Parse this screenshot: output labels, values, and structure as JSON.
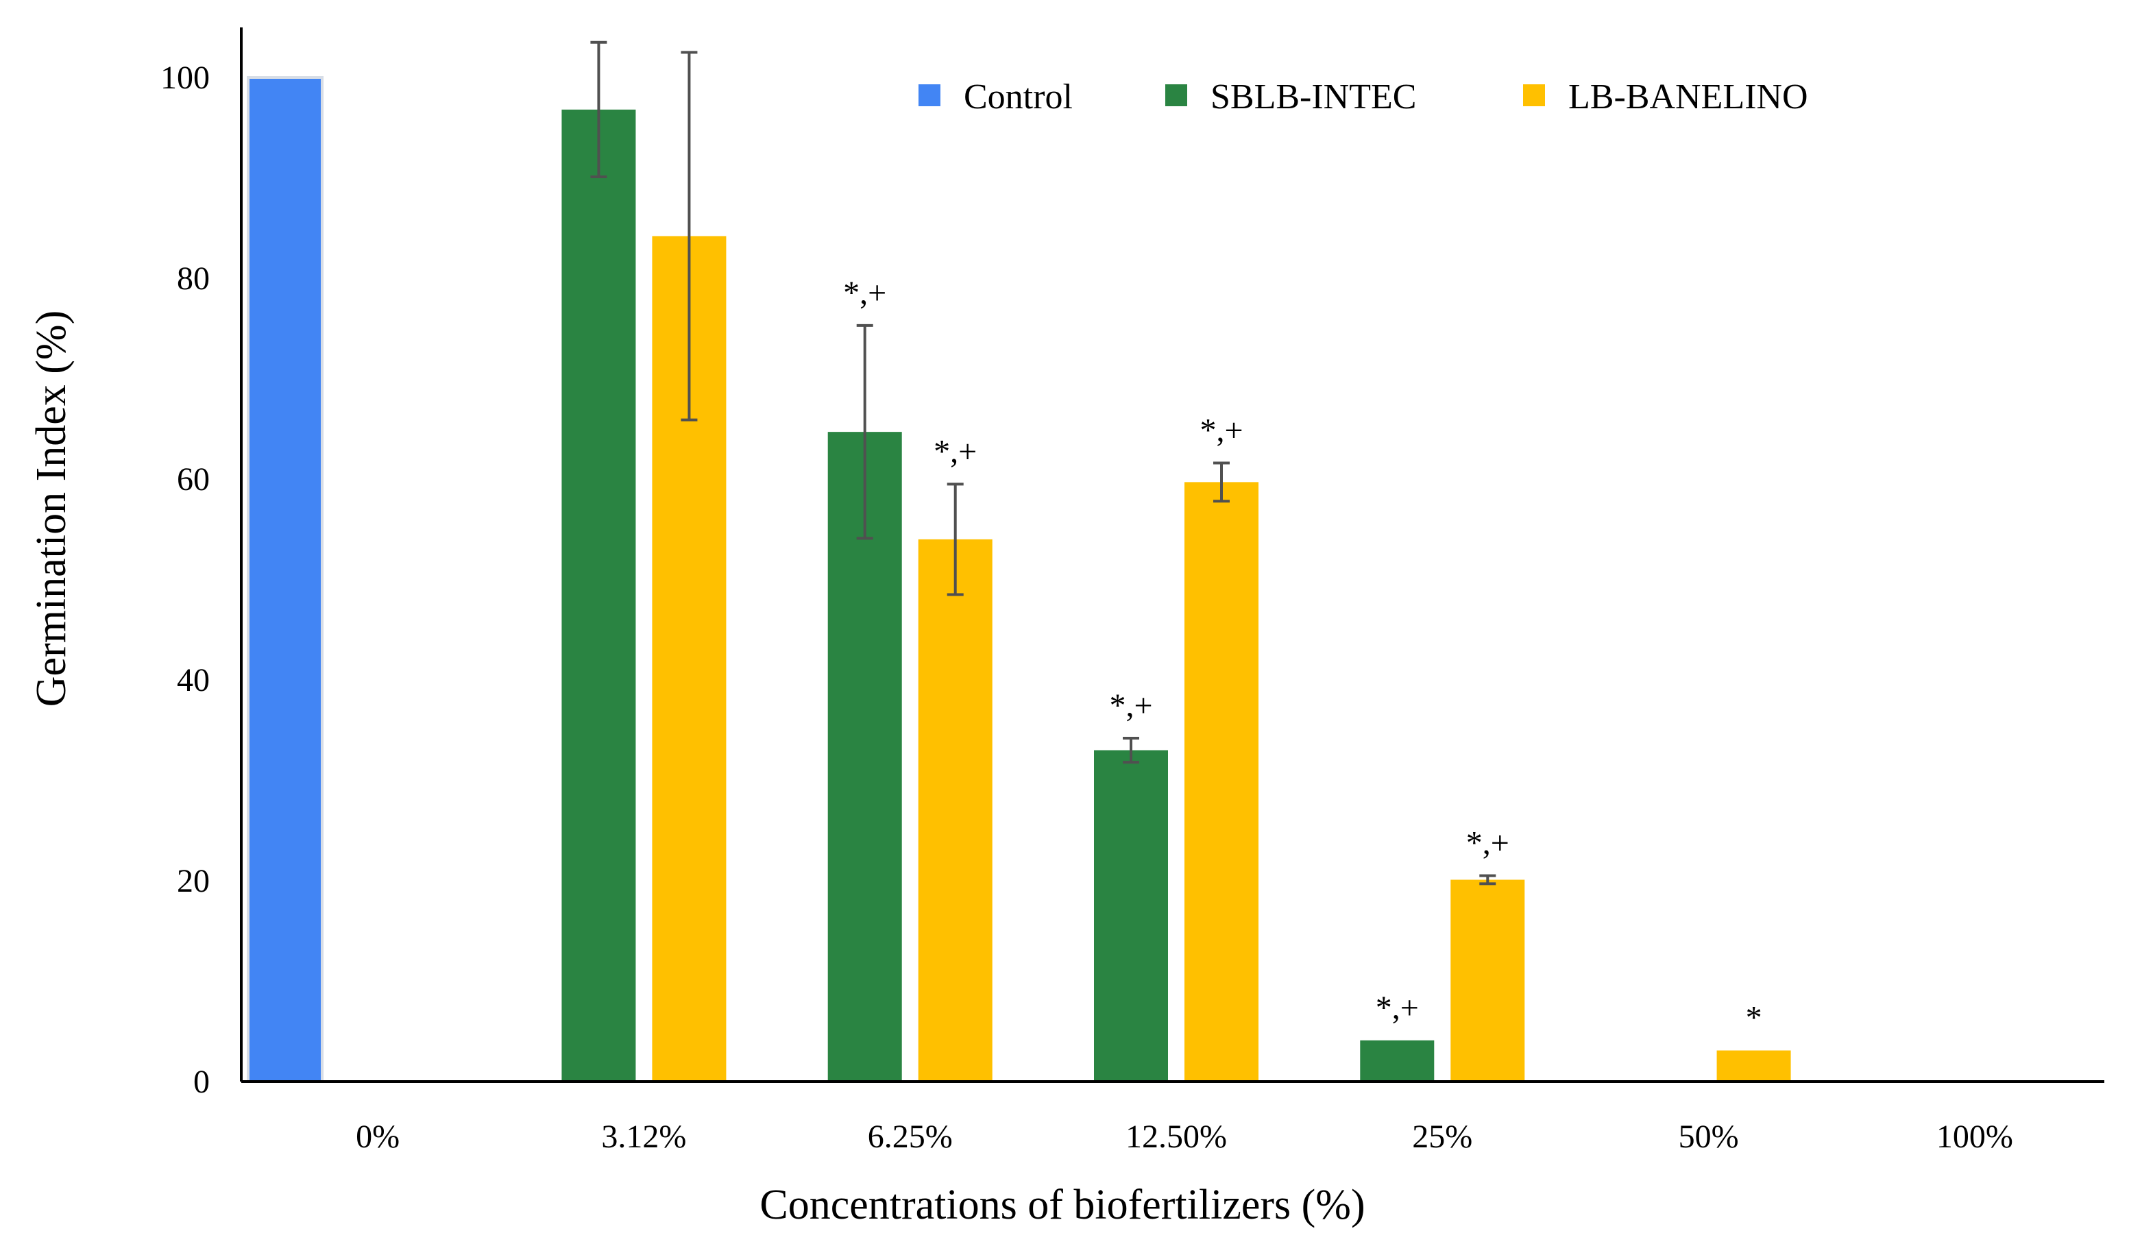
{
  "chart_data": {
    "type": "bar",
    "title": "",
    "xlabel": "Concentrations of biofertilizers (%)",
    "ylabel": "Germination Index (%)",
    "ylim": [
      0,
      100
    ],
    "yticks": [
      "0",
      "20",
      "40",
      "60",
      "80",
      "100"
    ],
    "categories": [
      "0%",
      "3.12%",
      "6.25%",
      "12.50%",
      "25%",
      "50%",
      "100%"
    ],
    "legend_position": "top-right",
    "series": [
      {
        "name": "Control",
        "color": "#4285F4",
        "values": [
          100,
          null,
          null,
          null,
          null,
          null,
          null
        ],
        "errors": [
          null,
          null,
          null,
          null,
          null,
          null,
          null
        ],
        "significance": [
          "",
          "",
          "",
          "",
          "",
          "",
          ""
        ]
      },
      {
        "name": "SBLB-INTEC",
        "color": "#2A8442",
        "values": [
          null,
          96.8,
          64.7,
          33.0,
          4.1,
          0,
          0
        ],
        "errors": [
          null,
          6.7,
          10.6,
          1.2,
          null,
          null,
          null
        ],
        "significance": [
          "",
          "",
          "*,+",
          "*,+",
          "*,+",
          "",
          ""
        ]
      },
      {
        "name": "LB-BANELINO",
        "color": "#FFC000",
        "values": [
          null,
          84.2,
          54.0,
          59.7,
          20.1,
          3.1,
          0
        ],
        "errors": [
          null,
          18.3,
          5.5,
          1.9,
          0.4,
          null,
          null
        ],
        "significance": [
          "",
          "",
          "*,+",
          "*,+",
          "*,+",
          "*",
          ""
        ]
      }
    ]
  }
}
